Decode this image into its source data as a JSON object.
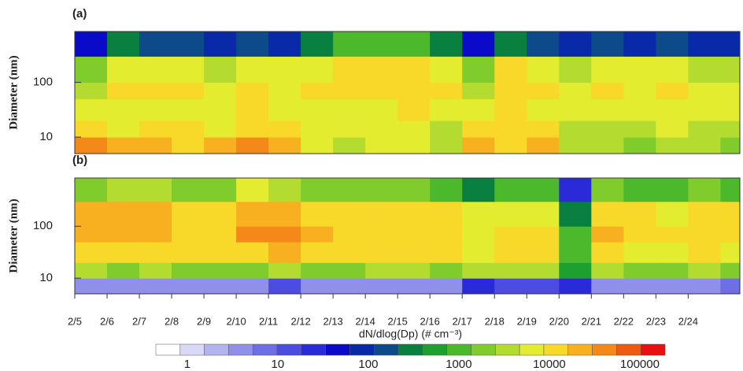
{
  "chart_data": [
    {
      "type": "heatmap",
      "panel_label": "(a)",
      "ylabel": "Diameter (nm)",
      "x_bins": [
        5,
        6,
        7,
        8,
        9,
        10,
        11,
        12,
        13,
        14,
        15,
        16,
        17,
        18,
        19,
        20,
        21,
        22,
        23,
        24,
        25,
        25.6
      ],
      "y_bins": [
        5,
        10,
        20,
        50,
        100,
        300,
        850
      ],
      "values": [
        [
          30000,
          20000,
          25000,
          15000,
          20000,
          30000,
          20000,
          8000,
          3000,
          5000,
          5000,
          3000,
          20000,
          10000,
          20000,
          3000,
          3000,
          2000,
          4000,
          3000,
          2000
        ],
        [
          10000,
          8000,
          15000,
          10000,
          8000,
          15000,
          10000,
          6000,
          5000,
          5000,
          6000,
          4000,
          10000,
          15000,
          10000,
          4000,
          4000,
          3000,
          5000,
          4000,
          3000
        ],
        [
          5000,
          6000,
          8000,
          7000,
          6000,
          10000,
          8000,
          8000,
          8000,
          8000,
          9000,
          7000,
          6000,
          12000,
          8000,
          5000,
          6000,
          5000,
          7000,
          6000,
          5000
        ],
        [
          3000,
          12000,
          10000,
          10000,
          6000,
          12000,
          8000,
          10000,
          15000,
          15000,
          15000,
          10000,
          4000,
          15000,
          12000,
          6000,
          10000,
          8000,
          10000,
          8000,
          6000
        ],
        [
          1500,
          8000,
          6000,
          6000,
          3000,
          6000,
          5000,
          8000,
          12000,
          12000,
          12000,
          8000,
          2000,
          10000,
          8000,
          3000,
          6000,
          5000,
          6000,
          4000,
          3000
        ],
        [
          50,
          300,
          200,
          200,
          80,
          200,
          100,
          300,
          800,
          800,
          800,
          300,
          50,
          300,
          200,
          80,
          150,
          100,
          200,
          100,
          80
        ]
      ],
      "xlim": [
        5,
        25.6
      ],
      "ylim": [
        5,
        850
      ],
      "log_y": true,
      "yticks": [
        10,
        100
      ]
    },
    {
      "type": "heatmap",
      "panel_label": "(b)",
      "ylabel": "Diameter (nm)",
      "x_bins": [
        5,
        6,
        7,
        8,
        9,
        10,
        11,
        12,
        13,
        14,
        15,
        16,
        17,
        18,
        19,
        20,
        21,
        22,
        23,
        24,
        25,
        25.6
      ],
      "y_bins": [
        5,
        10,
        20,
        50,
        100,
        300,
        850
      ],
      "values": [
        [
          5,
          3,
          4,
          3,
          5,
          3,
          10,
          5,
          3,
          4,
          5,
          3,
          20,
          10,
          10,
          30,
          4,
          5,
          3,
          5,
          8
        ],
        [
          3000,
          2000,
          3000,
          2000,
          2000,
          2000,
          3000,
          2000,
          2000,
          3000,
          3000,
          2000,
          4000,
          3000,
          3000,
          500,
          3000,
          2000,
          2000,
          3000,
          2000
        ],
        [
          15000,
          12000,
          15000,
          10000,
          10000,
          15000,
          20000,
          12000,
          10000,
          12000,
          12000,
          10000,
          8000,
          10000,
          10000,
          1000,
          15000,
          8000,
          8000,
          10000,
          8000
        ],
        [
          25000,
          20000,
          25000,
          15000,
          15000,
          30000,
          30000,
          20000,
          15000,
          15000,
          15000,
          12000,
          8000,
          12000,
          12000,
          800,
          20000,
          12000,
          10000,
          15000,
          12000
        ],
        [
          20000,
          18000,
          20000,
          12000,
          12000,
          25000,
          25000,
          15000,
          12000,
          12000,
          12000,
          10000,
          5000,
          8000,
          8000,
          300,
          15000,
          10000,
          8000,
          15000,
          10000
        ],
        [
          2000,
          3000,
          3000,
          1500,
          1500,
          5000,
          3000,
          2000,
          1500,
          1500,
          1500,
          1000,
          300,
          800,
          800,
          30,
          1500,
          1000,
          800,
          1500,
          1000
        ]
      ],
      "xlim": [
        5,
        25.6
      ],
      "ylim": [
        5,
        850
      ],
      "log_y": true,
      "yticks": [
        10,
        100
      ],
      "xticks": [
        {
          "value": 5,
          "label": "2/5"
        },
        {
          "value": 6,
          "label": "2/6"
        },
        {
          "value": 7,
          "label": "2/7"
        },
        {
          "value": 8,
          "label": "2/8"
        },
        {
          "value": 9,
          "label": "2/9"
        },
        {
          "value": 10,
          "label": "2/10"
        },
        {
          "value": 11,
          "label": "2/11"
        },
        {
          "value": 12,
          "label": "2/12"
        },
        {
          "value": 13,
          "label": "2/13"
        },
        {
          "value": 14,
          "label": "2/14"
        },
        {
          "value": 15,
          "label": "2/15"
        },
        {
          "value": 16,
          "label": "2/16"
        },
        {
          "value": 17,
          "label": "2/17"
        },
        {
          "value": 18,
          "label": "2/18"
        },
        {
          "value": 19,
          "label": "2/19"
        },
        {
          "value": 20,
          "label": "2/20"
        },
        {
          "value": 21,
          "label": "2/21"
        },
        {
          "value": 22,
          "label": "2/22"
        },
        {
          "value": 23,
          "label": "2/23"
        },
        {
          "value": 24,
          "label": "2/24"
        }
      ]
    }
  ],
  "colorbar": {
    "label": "dN/dlog(Dp) (# cm⁻³)",
    "lim": [
      0.45,
      190000
    ],
    "ticks": [
      1,
      10,
      100,
      1000,
      10000,
      100000
    ],
    "colors": [
      "#ffffff",
      "#d9d9f7",
      "#b3b3f0",
      "#9090ea",
      "#6e6ee5",
      "#4c4ce0",
      "#2a2ad8",
      "#0a0ac8",
      "#082aa8",
      "#0c4a8a",
      "#0a8040",
      "#1ea030",
      "#4cb82c",
      "#80cc2c",
      "#b4dc30",
      "#e4ec30",
      "#f8d828",
      "#f8b020",
      "#f48818",
      "#ee5a12",
      "#e81010"
    ]
  }
}
